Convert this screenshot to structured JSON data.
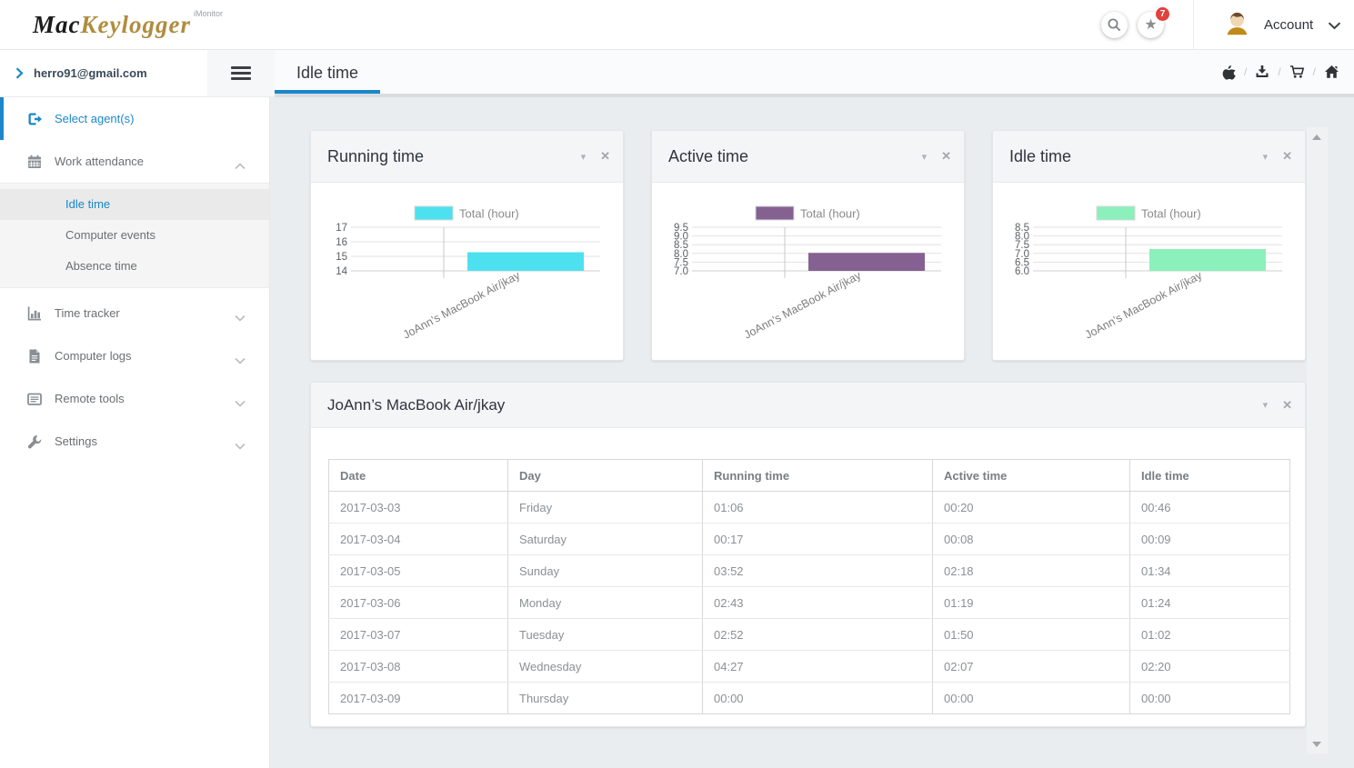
{
  "header": {
    "logo_primary": "Mac",
    "logo_secondary": "Keylogger",
    "logo_superscript": "iMonitor",
    "notification_count": "7",
    "account_label": "Account"
  },
  "subheader": {
    "email": "herro91@gmail.com",
    "active_tab": "Idle time"
  },
  "sidebar": {
    "items": [
      {
        "label": "Select agent(s)"
      },
      {
        "label": "Work attendance"
      },
      {
        "label": "Time tracker"
      },
      {
        "label": "Computer logs"
      },
      {
        "label": "Remote tools"
      },
      {
        "label": "Settings"
      }
    ],
    "submenu": [
      {
        "label": "Idle time"
      },
      {
        "label": "Computer events"
      },
      {
        "label": "Absence time"
      }
    ]
  },
  "chart_data": [
    {
      "type": "bar",
      "title": "Running time",
      "legend": "Total (hour)",
      "legend_position": "top",
      "categories": [
        "JoAnn’s MacBook Air/jkay"
      ],
      "values": [
        15.28
      ],
      "yticks": [
        "17",
        "16",
        "15",
        "14"
      ],
      "ylim": [
        14,
        17
      ],
      "grid": true,
      "bar_color": "#4de1ef"
    },
    {
      "type": "bar",
      "title": "Active time",
      "legend": "Total (hour)",
      "legend_position": "top",
      "categories": [
        "JoAnn’s MacBook Air/jkay"
      ],
      "values": [
        8.03
      ],
      "yticks": [
        "9.5",
        "9.0",
        "8.5",
        "8.0",
        "7.5",
        "7.0"
      ],
      "ylim": [
        7,
        9.5
      ],
      "grid": true,
      "bar_color": "#846191"
    },
    {
      "type": "bar",
      "title": "Idle time",
      "legend": "Total (hour)",
      "legend_position": "top",
      "categories": [
        "JoAnn’s MacBook Air/jkay"
      ],
      "values": [
        7.25
      ],
      "yticks": [
        "8.5",
        "8.0",
        "7.5",
        "7.0",
        "6.5",
        "6.0"
      ],
      "ylim": [
        6,
        8.5
      ],
      "grid": true,
      "bar_color": "#8bf0bb"
    }
  ],
  "table_panel": {
    "title": "JoAnn’s MacBook Air/jkay",
    "columns": [
      "Date",
      "Day",
      "Running time",
      "Active time",
      "Idle time"
    ],
    "rows": [
      [
        "2017-03-03",
        "Friday",
        "01:06",
        "00:20",
        "00:46"
      ],
      [
        "2017-03-04",
        "Saturday",
        "00:17",
        "00:08",
        "00:09"
      ],
      [
        "2017-03-05",
        "Sunday",
        "03:52",
        "02:18",
        "01:34"
      ],
      [
        "2017-03-06",
        "Monday",
        "02:43",
        "01:19",
        "01:24"
      ],
      [
        "2017-03-07",
        "Tuesday",
        "02:52",
        "01:50",
        "01:02"
      ],
      [
        "2017-03-08",
        "Wednesday",
        "04:27",
        "02:07",
        "02:20"
      ],
      [
        "2017-03-09",
        "Thursday",
        "00:00",
        "00:00",
        "00:00"
      ]
    ]
  },
  "colors": {
    "accent_blue": "#1b87c9",
    "badge_red": "#e2413c",
    "logo_gold": "#b08c3e",
    "running_bar": "#4de1ef",
    "active_bar": "#846191",
    "idle_bar": "#8bf0bb"
  }
}
